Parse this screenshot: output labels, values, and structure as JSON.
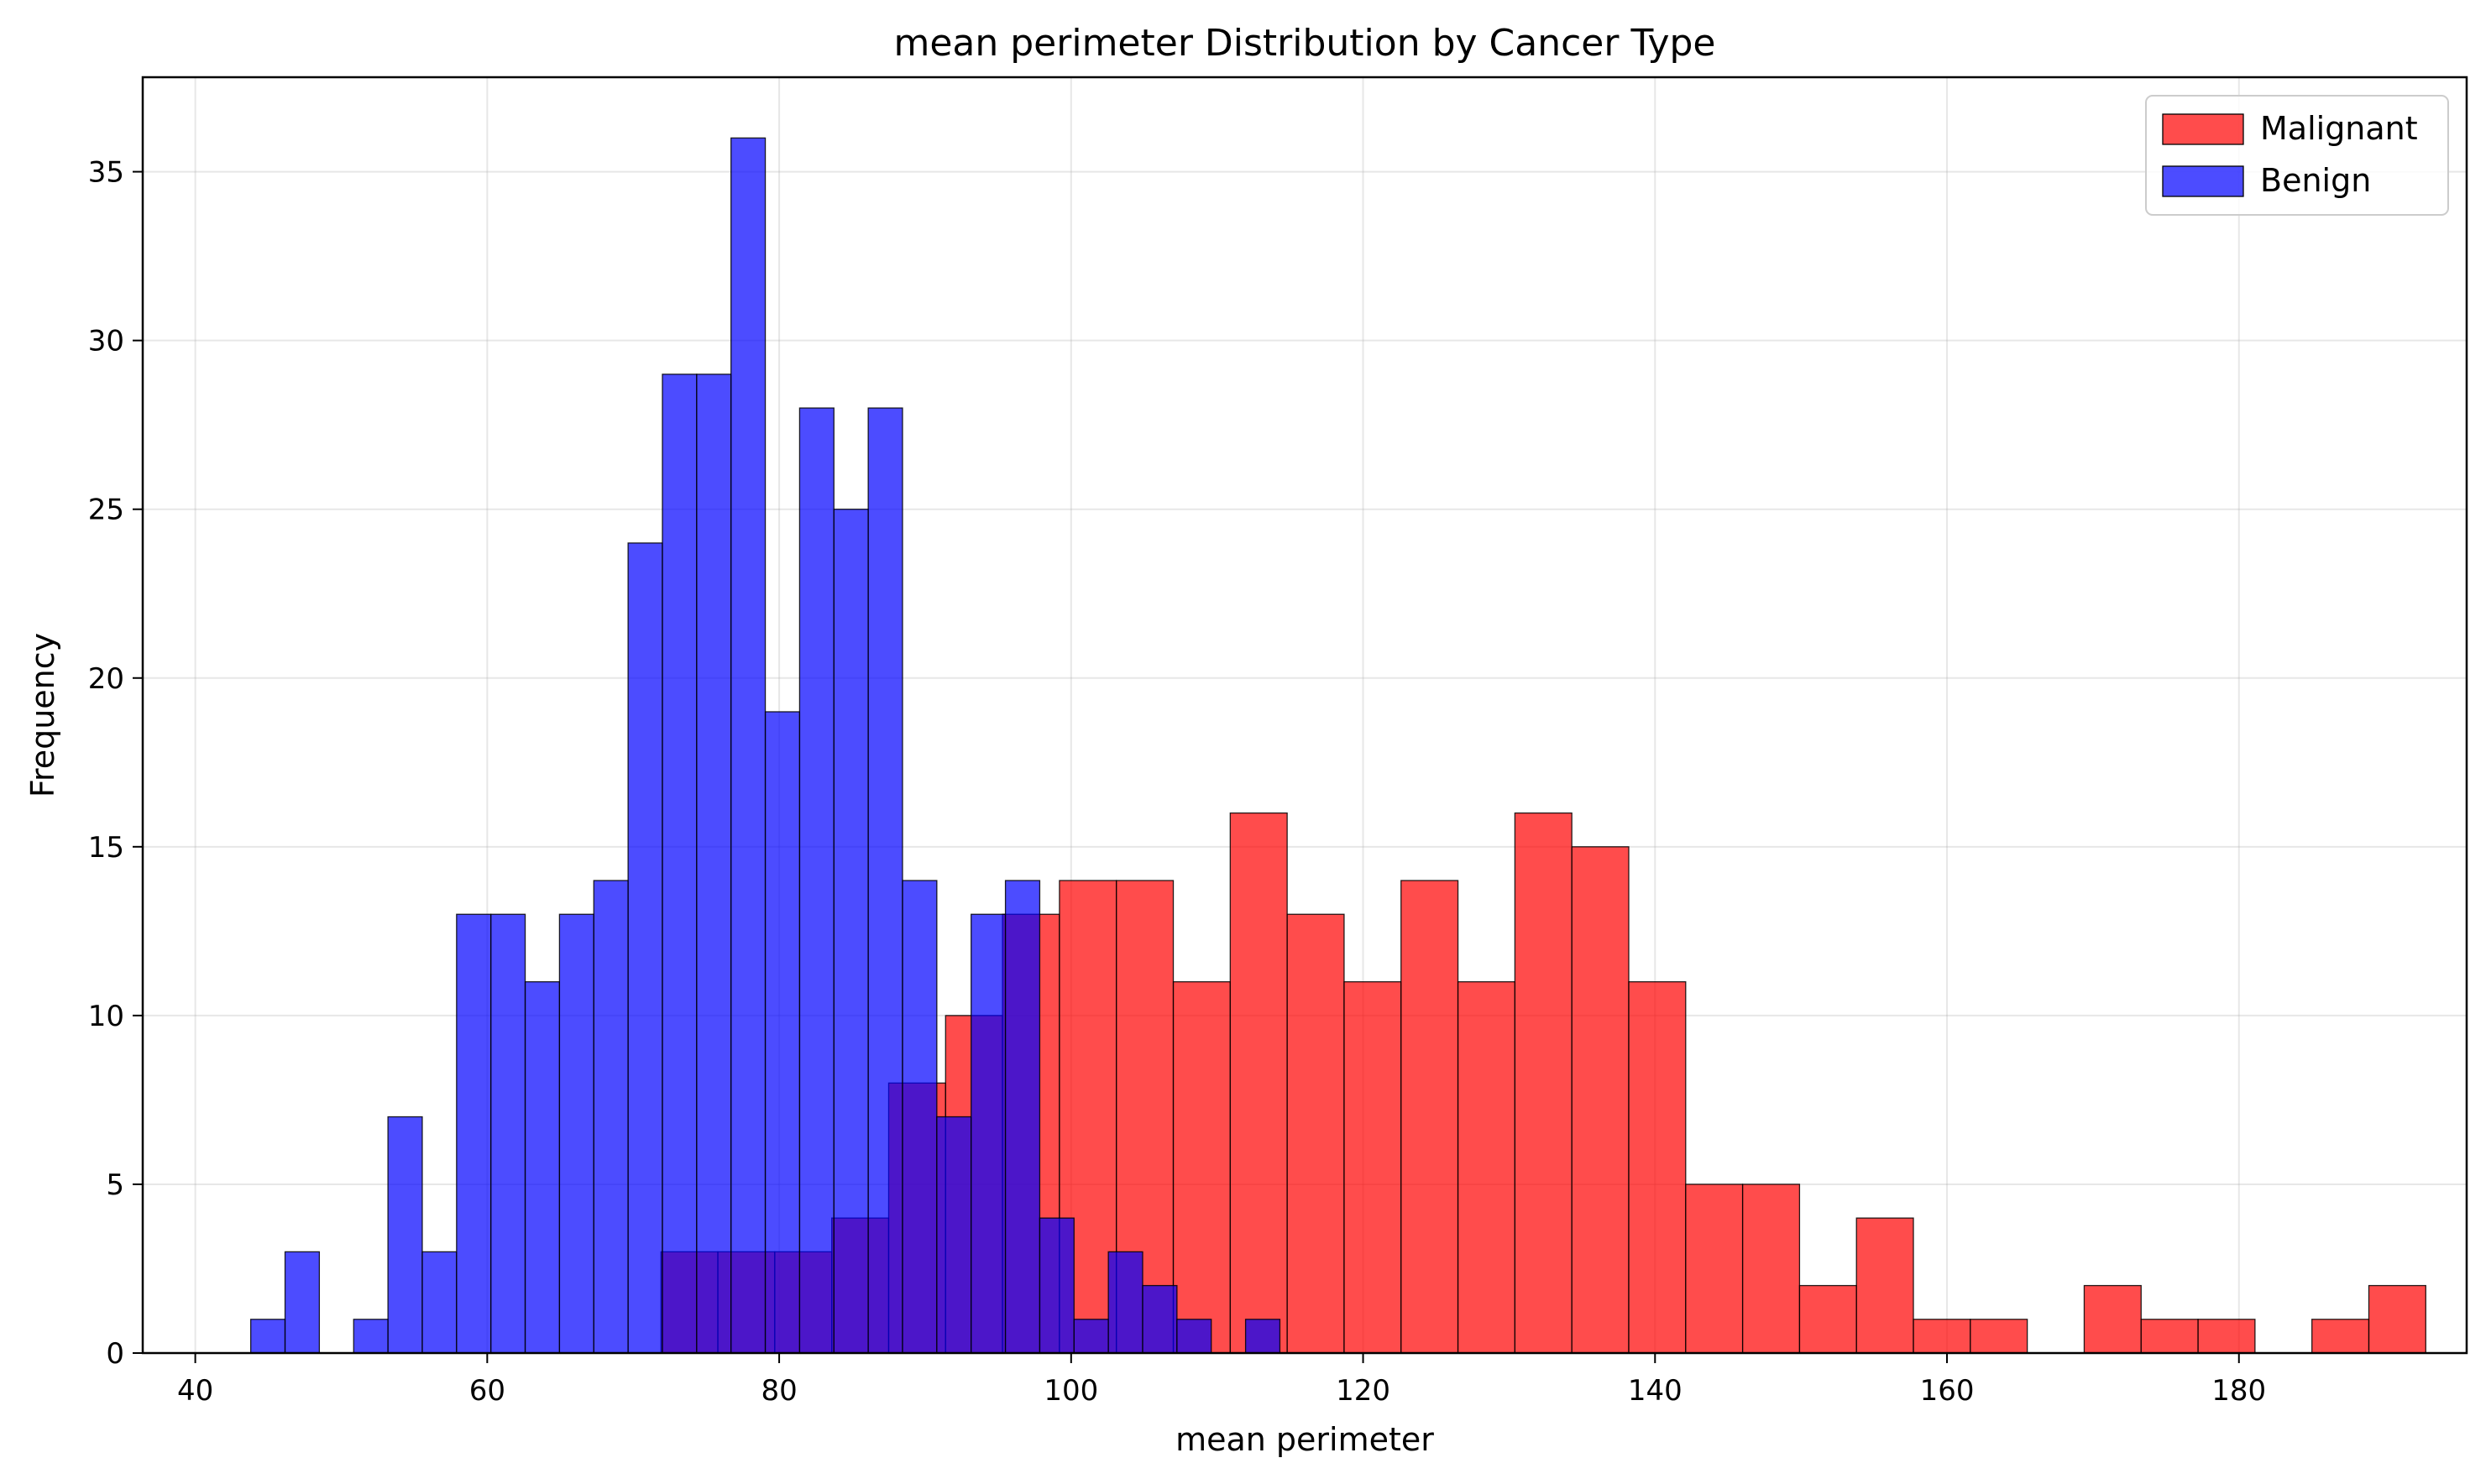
{
  "chart_data": {
    "type": "histogram",
    "title": "mean perimeter Distribution by Cancer Type",
    "xlabel": "mean perimeter",
    "ylabel": "Frequency",
    "xlim": [
      36.4,
      195.6
    ],
    "ylim": [
      0,
      37.8
    ],
    "xticks": [
      40,
      60,
      80,
      100,
      120,
      140,
      160,
      180
    ],
    "yticks": [
      0,
      5,
      10,
      15,
      20,
      25,
      30,
      35
    ],
    "grid": true,
    "legend_position": "upper right",
    "series": [
      {
        "name": "Malignant",
        "color": "#ff0000",
        "alpha": 0.7,
        "bin_start": 71.9,
        "bin_width": 3.9,
        "counts": [
          3,
          3,
          3,
          4,
          8,
          10,
          13,
          14,
          14,
          11,
          16,
          13,
          11,
          14,
          11,
          16,
          15,
          11,
          5,
          5,
          2,
          4,
          1,
          1,
          0,
          2,
          1,
          1,
          0,
          1,
          2
        ]
      },
      {
        "name": "Benign",
        "color": "#0000ff",
        "alpha": 0.7,
        "bin_start": 43.8,
        "bin_width": 2.35,
        "counts": [
          1,
          3,
          0,
          1,
          7,
          3,
          13,
          13,
          11,
          13,
          14,
          24,
          29,
          29,
          36,
          19,
          28,
          25,
          28,
          14,
          7,
          13,
          14,
          4,
          1,
          3,
          2,
          1,
          0,
          1
        ]
      }
    ]
  }
}
